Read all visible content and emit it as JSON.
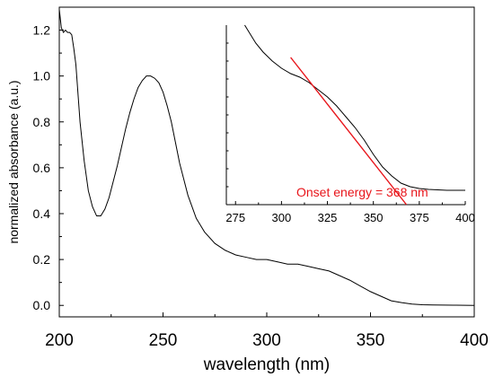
{
  "chart_data": [
    {
      "type": "line",
      "title": "",
      "xlabel": "wavelength (nm)",
      "ylabel": "normalized absorbance (a.u.)",
      "xlim": [
        200,
        400
      ],
      "ylim": [
        -0.05,
        1.3
      ],
      "xticks": [
        200,
        250,
        300,
        350,
        400
      ],
      "xtick_labels": [
        "200",
        "250",
        "300",
        "350",
        "400"
      ],
      "yticks": [
        0.0,
        0.2,
        0.4,
        0.6,
        0.8,
        1.0,
        1.2
      ],
      "ytick_labels": [
        "0.0",
        "0.2",
        "0.4",
        "0.6",
        "0.8",
        "1.0",
        "1.2"
      ],
      "grid": false,
      "line_color": "#000000",
      "series": [
        {
          "x": [
            200,
            201,
            202,
            203,
            204,
            205,
            206,
            207,
            208,
            210,
            212,
            214,
            216,
            218,
            220,
            222,
            224,
            226,
            228,
            230,
            232,
            234,
            236,
            238,
            240,
            242,
            244,
            246,
            248,
            250,
            252,
            254,
            256,
            258,
            260,
            262,
            264,
            266,
            268,
            270,
            275,
            280,
            285,
            290,
            295,
            300,
            305,
            310,
            315,
            320,
            325,
            330,
            335,
            340,
            345,
            350,
            355,
            360,
            365,
            370,
            375,
            380,
            390,
            400
          ],
          "y": [
            1.29,
            1.21,
            1.19,
            1.2,
            1.19,
            1.19,
            1.18,
            1.12,
            1.05,
            0.8,
            0.63,
            0.5,
            0.43,
            0.39,
            0.39,
            0.42,
            0.47,
            0.54,
            0.61,
            0.69,
            0.77,
            0.84,
            0.9,
            0.95,
            0.98,
            1.0,
            1.0,
            0.99,
            0.97,
            0.93,
            0.87,
            0.8,
            0.71,
            0.62,
            0.55,
            0.48,
            0.43,
            0.38,
            0.35,
            0.32,
            0.27,
            0.24,
            0.22,
            0.21,
            0.2,
            0.2,
            0.19,
            0.18,
            0.18,
            0.17,
            0.16,
            0.15,
            0.13,
            0.11,
            0.085,
            0.06,
            0.04,
            0.02,
            0.012,
            0.006,
            0.003,
            0.002,
            0.001,
            0.0
          ]
        }
      ]
    },
    {
      "type": "line",
      "title": "",
      "xlabel": "",
      "ylabel": "",
      "xlim": [
        270,
        400
      ],
      "ylim": [
        0.0,
        1.0
      ],
      "xticks": [
        275,
        300,
        325,
        350,
        375,
        400
      ],
      "xtick_labels": [
        "275",
        "300",
        "325",
        "350",
        "375",
        "400"
      ],
      "grid": false,
      "line_color": "#000000",
      "series": [
        {
          "x": [
            280,
            283,
            286,
            290,
            295,
            300,
            305,
            310,
            315,
            320,
            325,
            330,
            335,
            340,
            345,
            350,
            355,
            360,
            365,
            370,
            375,
            380,
            390,
            400
          ],
          "y": [
            1.0,
            0.95,
            0.9,
            0.85,
            0.8,
            0.76,
            0.73,
            0.71,
            0.68,
            0.64,
            0.6,
            0.55,
            0.49,
            0.43,
            0.36,
            0.28,
            0.21,
            0.16,
            0.12,
            0.1,
            0.09,
            0.085,
            0.08,
            0.08
          ]
        }
      ],
      "annotation": {
        "text": "Onset energy = 368 nm",
        "color": "#e8141a",
        "line_x": [
          305,
          368
        ],
        "line_y": [
          0.82,
          0.0
        ]
      }
    }
  ]
}
